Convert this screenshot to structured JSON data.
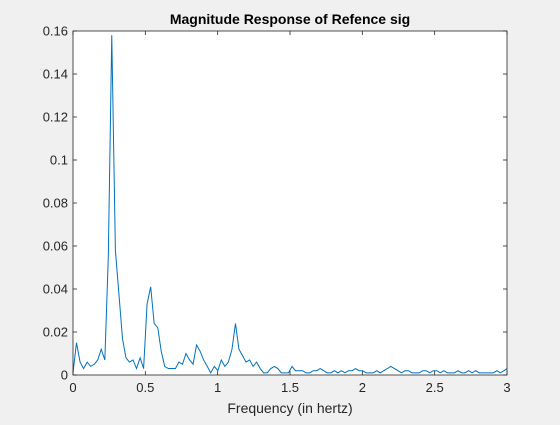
{
  "chart_data": {
    "type": "line",
    "title": "Magnitude Response of Refence sig",
    "xlabel": "Frequency (in hertz)",
    "ylabel": "",
    "xlim": [
      0,
      3
    ],
    "ylim": [
      0,
      0.16
    ],
    "grid": false,
    "colors": {
      "line": "#0072bd",
      "axes": "#262626",
      "plot_bg": "#ffffff",
      "figure_bg": "#f0f0f0"
    },
    "x_ticks": [
      0,
      0.5,
      1,
      1.5,
      2,
      2.5,
      3
    ],
    "x_tick_labels": [
      "0",
      "0.5",
      "1",
      "1.5",
      "2",
      "2.5",
      "3"
    ],
    "y_ticks": [
      0,
      0.02,
      0.04,
      0.06,
      0.08,
      0.1,
      0.12,
      0.14,
      0.16
    ],
    "y_tick_labels": [
      "0",
      "0.02",
      "0.04",
      "0.06",
      "0.08",
      "0.1",
      "0.12",
      "0.14",
      "0.16"
    ],
    "series": [
      {
        "x": [
          0,
          0.024,
          0.049,
          0.073,
          0.098,
          0.122,
          0.147,
          0.171,
          0.195,
          0.22,
          0.244,
          0.268,
          0.293,
          0.317,
          0.342,
          0.366,
          0.39,
          0.415,
          0.439,
          0.464,
          0.488,
          0.512,
          0.537,
          0.561,
          0.586,
          0.61,
          0.634,
          0.659,
          0.683,
          0.708,
          0.732,
          0.757,
          0.781,
          0.806,
          0.83,
          0.854,
          0.879,
          0.903,
          0.928,
          0.952,
          0.977,
          1.001,
          1.025,
          1.05,
          1.074,
          1.099,
          1.123,
          1.147,
          1.172,
          1.196,
          1.221,
          1.245,
          1.269,
          1.294,
          1.318,
          1.343,
          1.367,
          1.392,
          1.416,
          1.44,
          1.465,
          1.489,
          1.514,
          1.538,
          1.562,
          1.587,
          1.611,
          1.636,
          1.66,
          1.685,
          1.709,
          1.733,
          1.758,
          1.782,
          1.807,
          1.831,
          1.855,
          1.88,
          1.904,
          1.929,
          1.953,
          1.978,
          2.002,
          2.026,
          2.051,
          2.075,
          2.1,
          2.124,
          2.148,
          2.173,
          2.197,
          2.222,
          2.246,
          2.271,
          2.295,
          2.319,
          2.344,
          2.368,
          2.393,
          2.417,
          2.441,
          2.466,
          2.49,
          2.515,
          2.539,
          2.564,
          2.588,
          2.612,
          2.637,
          2.661,
          2.686,
          2.71,
          2.734,
          2.759,
          2.783,
          2.808,
          2.832,
          2.856,
          2.881,
          2.905,
          2.93,
          2.954,
          2.979,
          3.0
        ],
        "y": [
          0.001,
          0.015,
          0.006,
          0.003,
          0.006,
          0.004,
          0.005,
          0.007,
          0.012,
          0.007,
          0.055,
          0.158,
          0.058,
          0.038,
          0.017,
          0.008,
          0.006,
          0.007,
          0.003,
          0.008,
          0.003,
          0.033,
          0.041,
          0.024,
          0.022,
          0.011,
          0.004,
          0.003,
          0.003,
          0.003,
          0.006,
          0.005,
          0.01,
          0.007,
          0.005,
          0.014,
          0.011,
          0.007,
          0.004,
          0.001,
          0.004,
          0.002,
          0.007,
          0.004,
          0.006,
          0.012,
          0.024,
          0.012,
          0.009,
          0.006,
          0.007,
          0.004,
          0.006,
          0.003,
          0.001,
          0.001,
          0.003,
          0.004,
          0.003,
          0.001,
          0.001,
          0.001,
          0.004,
          0.002,
          0.002,
          0.002,
          0.001,
          0.001,
          0.002,
          0.002,
          0.003,
          0.002,
          0.001,
          0.001,
          0.002,
          0.001,
          0.002,
          0.001,
          0.002,
          0.002,
          0.003,
          0.002,
          0.002,
          0.001,
          0.001,
          0.001,
          0.002,
          0.001,
          0.002,
          0.003,
          0.004,
          0.003,
          0.002,
          0.001,
          0.002,
          0.002,
          0.001,
          0.001,
          0.001,
          0.002,
          0.002,
          0.001,
          0.002,
          0.002,
          0.001,
          0.002,
          0.001,
          0.001,
          0.001,
          0.002,
          0.001,
          0.001,
          0.002,
          0.001,
          0.002,
          0.001,
          0.001,
          0.001,
          0.001,
          0.001,
          0.002,
          0.001,
          0.002,
          0.003
        ]
      }
    ]
  }
}
